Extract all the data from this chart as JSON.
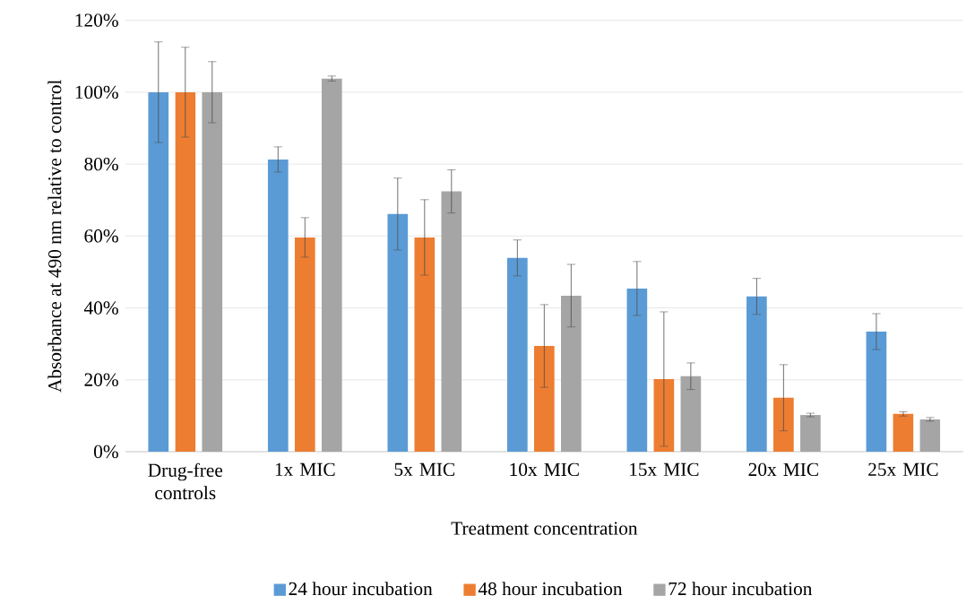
{
  "chart_data": {
    "type": "bar",
    "xlabel": "Treatment concentration",
    "ylabel": "Absorbance at 490 nm relative to control",
    "categories": [
      "Drug-free controls",
      "1x MIC",
      "5x MIC",
      "10x MIC",
      "15x MIC",
      "20x MIC",
      "25x MIC"
    ],
    "series": [
      {
        "name": "24 hour incubation",
        "color": "#5b9bd5",
        "values": [
          100,
          81.3,
          66.1,
          53.9,
          45.4,
          43.2,
          33.4
        ],
        "errors": [
          14,
          3.5,
          10,
          5,
          7.5,
          5,
          5
        ]
      },
      {
        "name": "48 hour incubation",
        "color": "#ed7d31",
        "values": [
          100,
          59.6,
          59.6,
          29.4,
          20.2,
          15,
          10.5
        ],
        "errors": [
          12.5,
          5.5,
          10.5,
          11.5,
          18.7,
          9.2,
          0.6
        ]
      },
      {
        "name": "72 hour incubation",
        "color": "#a5a5a5",
        "values": [
          100,
          103.8,
          72.4,
          43.4,
          21,
          10.2,
          9
        ],
        "errors": [
          8.5,
          0.7,
          6,
          8.7,
          3.7,
          0.5,
          0.5
        ]
      }
    ],
    "ylim": [
      0,
      120
    ],
    "yticks": [
      {
        "value": 0,
        "label": "0%"
      },
      {
        "value": 20,
        "label": "20%"
      },
      {
        "value": 40,
        "label": "40%"
      },
      {
        "value": 60,
        "label": "60%"
      },
      {
        "value": 80,
        "label": "80%"
      },
      {
        "value": 100,
        "label": "100%"
      },
      {
        "value": 120,
        "label": "120%"
      }
    ],
    "grid": "y",
    "legend": "bottom"
  }
}
